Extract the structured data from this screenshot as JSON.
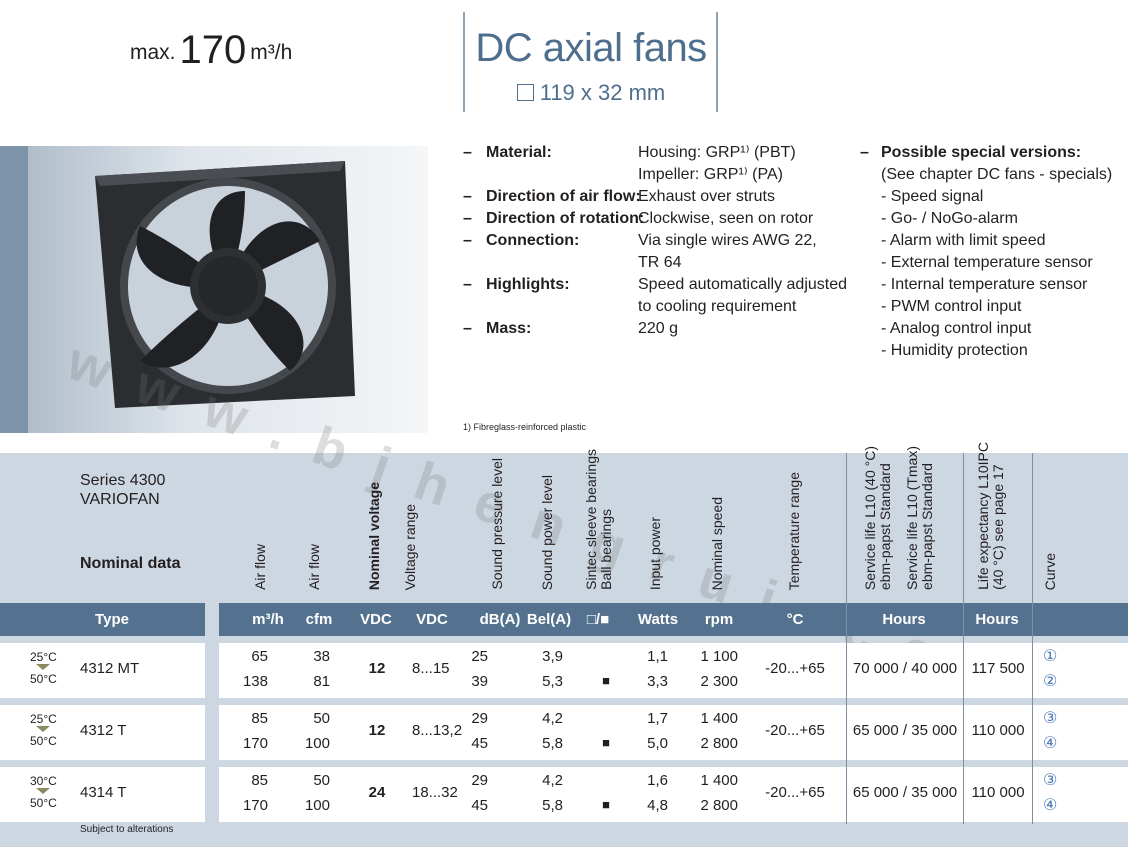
{
  "header": {
    "airflow_prefix": "max.",
    "airflow_value": "170",
    "airflow_unit": "m³/h",
    "title": "DC axial fans",
    "dimensions": "119 x 32 mm"
  },
  "specs": [
    {
      "label": "Material:",
      "values": [
        "Housing: GRP¹⁾ (PBT)",
        "Impeller: GRP¹⁾ (PA)"
      ]
    },
    {
      "label": "Direction of air flow:",
      "values": [
        "Exhaust over struts"
      ]
    },
    {
      "label": "Direction of rotation:",
      "values": [
        "Clockwise, seen on rotor"
      ]
    },
    {
      "label": "Connection:",
      "values": [
        "Via single wires AWG 22,",
        "TR 64"
      ]
    },
    {
      "label": "Highlights:",
      "values": [
        "Speed automatically adjusted",
        "to cooling requirement"
      ]
    },
    {
      "label": "Mass:",
      "values": [
        "220 g"
      ]
    }
  ],
  "special_versions": {
    "heading": "Possible special versions:",
    "note": "(See chapter DC fans - specials)",
    "items": [
      "- Speed signal",
      "- Go- / NoGo-alarm",
      "- Alarm with limit speed",
      "- External temperature sensor",
      "- Internal temperature sensor",
      "- PWM control input",
      "- Analog control input",
      "- Humidity protection"
    ]
  },
  "footnote": "1) Fibreglass-reinforced plastic",
  "table": {
    "series": "Series 4300",
    "variant": "VARIOFAN",
    "nominal_data": "Nominal data",
    "column_titles": [
      "Air flow",
      "Air flow",
      "Nominal voltage",
      "Voltage range",
      "Sound pressure level",
      "Sound power level",
      "Sintec sleeve bearings\nBall bearings",
      "Input power",
      "Nominal speed",
      "Temperature range",
      "Service life L10 (40 °C)\nebm-papst Standard",
      "Service life L10 (Tmax)\nebm-papst Standard",
      "Life expectancy L10IPC\n(40 °C) see page 17",
      "Curve"
    ],
    "units": [
      "Type",
      "m³/h",
      "cfm",
      "VDC",
      "VDC",
      "dB(A)",
      "Bel(A)",
      "□/■",
      "Watts",
      "rpm",
      "°C",
      "Hours",
      "Hours"
    ],
    "rows": [
      {
        "temp_low": "25°C",
        "temp_high": "50°C",
        "type": "4312 MT",
        "airflow_m3h": [
          "65",
          "138"
        ],
        "airflow_cfm": [
          "38",
          "81"
        ],
        "nominal_voltage": "12",
        "voltage_range": "8...15",
        "sound_pressure": [
          "25",
          "39"
        ],
        "sound_power": [
          "3,9",
          "5,3"
        ],
        "bearing": [
          "",
          "■"
        ],
        "input_power": [
          "1,1",
          "3,3"
        ],
        "speed": [
          "1 100",
          "2 300"
        ],
        "temp_range": "-20...+65",
        "service_life": "70 000 / 40 000",
        "life_expectancy": "117 500",
        "curve": [
          "①",
          "②"
        ]
      },
      {
        "temp_low": "25°C",
        "temp_high": "50°C",
        "type": "4312 T",
        "airflow_m3h": [
          "85",
          "170"
        ],
        "airflow_cfm": [
          "50",
          "100"
        ],
        "nominal_voltage": "12",
        "voltage_range": "8...13,2",
        "sound_pressure": [
          "29",
          "45"
        ],
        "sound_power": [
          "4,2",
          "5,8"
        ],
        "bearing": [
          "",
          "■"
        ],
        "input_power": [
          "1,7",
          "5,0"
        ],
        "speed": [
          "1 400",
          "2 800"
        ],
        "temp_range": "-20...+65",
        "service_life": "65 000 / 35 000",
        "life_expectancy": "110 000",
        "curve": [
          "③",
          "④"
        ]
      },
      {
        "temp_low": "30°C",
        "temp_high": "50°C",
        "type": "4314 T",
        "airflow_m3h": [
          "85",
          "170"
        ],
        "airflow_cfm": [
          "50",
          "100"
        ],
        "nominal_voltage": "24",
        "voltage_range": "18...32",
        "sound_pressure": [
          "29",
          "45"
        ],
        "sound_power": [
          "4,2",
          "5,8"
        ],
        "bearing": [
          "",
          "■"
        ],
        "input_power": [
          "1,6",
          "4,8"
        ],
        "speed": [
          "1 400",
          "2 800"
        ],
        "temp_range": "-20...+65",
        "service_life": "65 000 / 35 000",
        "life_expectancy": "110 000",
        "curve": [
          "③",
          "④"
        ]
      }
    ],
    "subject_note": "Subject to alterations"
  },
  "watermark": "www.bjhengrui.com",
  "colors": {
    "accent": "#4e6e8e",
    "header_bar": "#54728f",
    "table_bg": "#cdd7e2",
    "curve": "#4a78b5"
  }
}
